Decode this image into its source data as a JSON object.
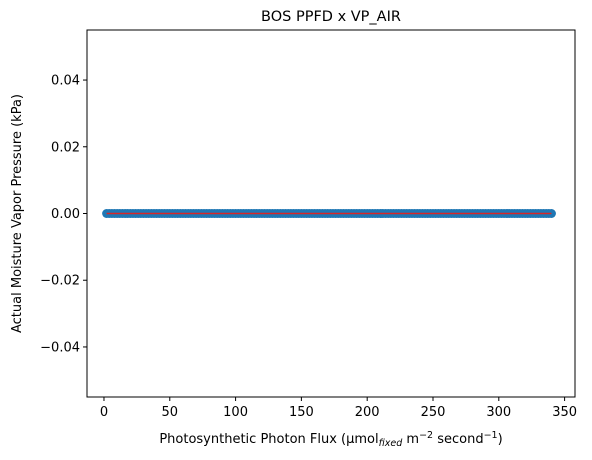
{
  "chart_data": {
    "type": "scatter",
    "title": "BOS PPFD x VP_AIR",
    "xlabel": {
      "main": "Photosynthetic Photon Flux (μmol",
      "sub": "fixed",
      "mid": " m",
      "sup1": "−2",
      "end": " second",
      "sup2": "−1",
      "close": ")"
    },
    "ylabel": "Actual Moisture Vapor Pressure (kPa)",
    "xlim": [
      -12.9,
      357.9
    ],
    "ylim": [
      -0.055,
      0.055
    ],
    "xticks": [
      0,
      50,
      100,
      150,
      200,
      250,
      300,
      350
    ],
    "xtick_labels": [
      "0",
      "50",
      "100",
      "150",
      "200",
      "250",
      "300",
      "350"
    ],
    "yticks": [
      -0.04,
      -0.02,
      0.0,
      0.02,
      0.04
    ],
    "ytick_labels": [
      "−0.04",
      "−0.02",
      "0.00",
      "0.02",
      "0.04"
    ],
    "grid": false,
    "series": [
      {
        "marker": "circle",
        "color": "#1f77b4",
        "x_start": 2,
        "x_end": 340,
        "x_step": 2,
        "y_constant": 0.0
      }
    ],
    "fit_line": {
      "color": "#d62728",
      "x": [
        2,
        340
      ],
      "y": [
        0.0,
        0.0
      ]
    }
  }
}
